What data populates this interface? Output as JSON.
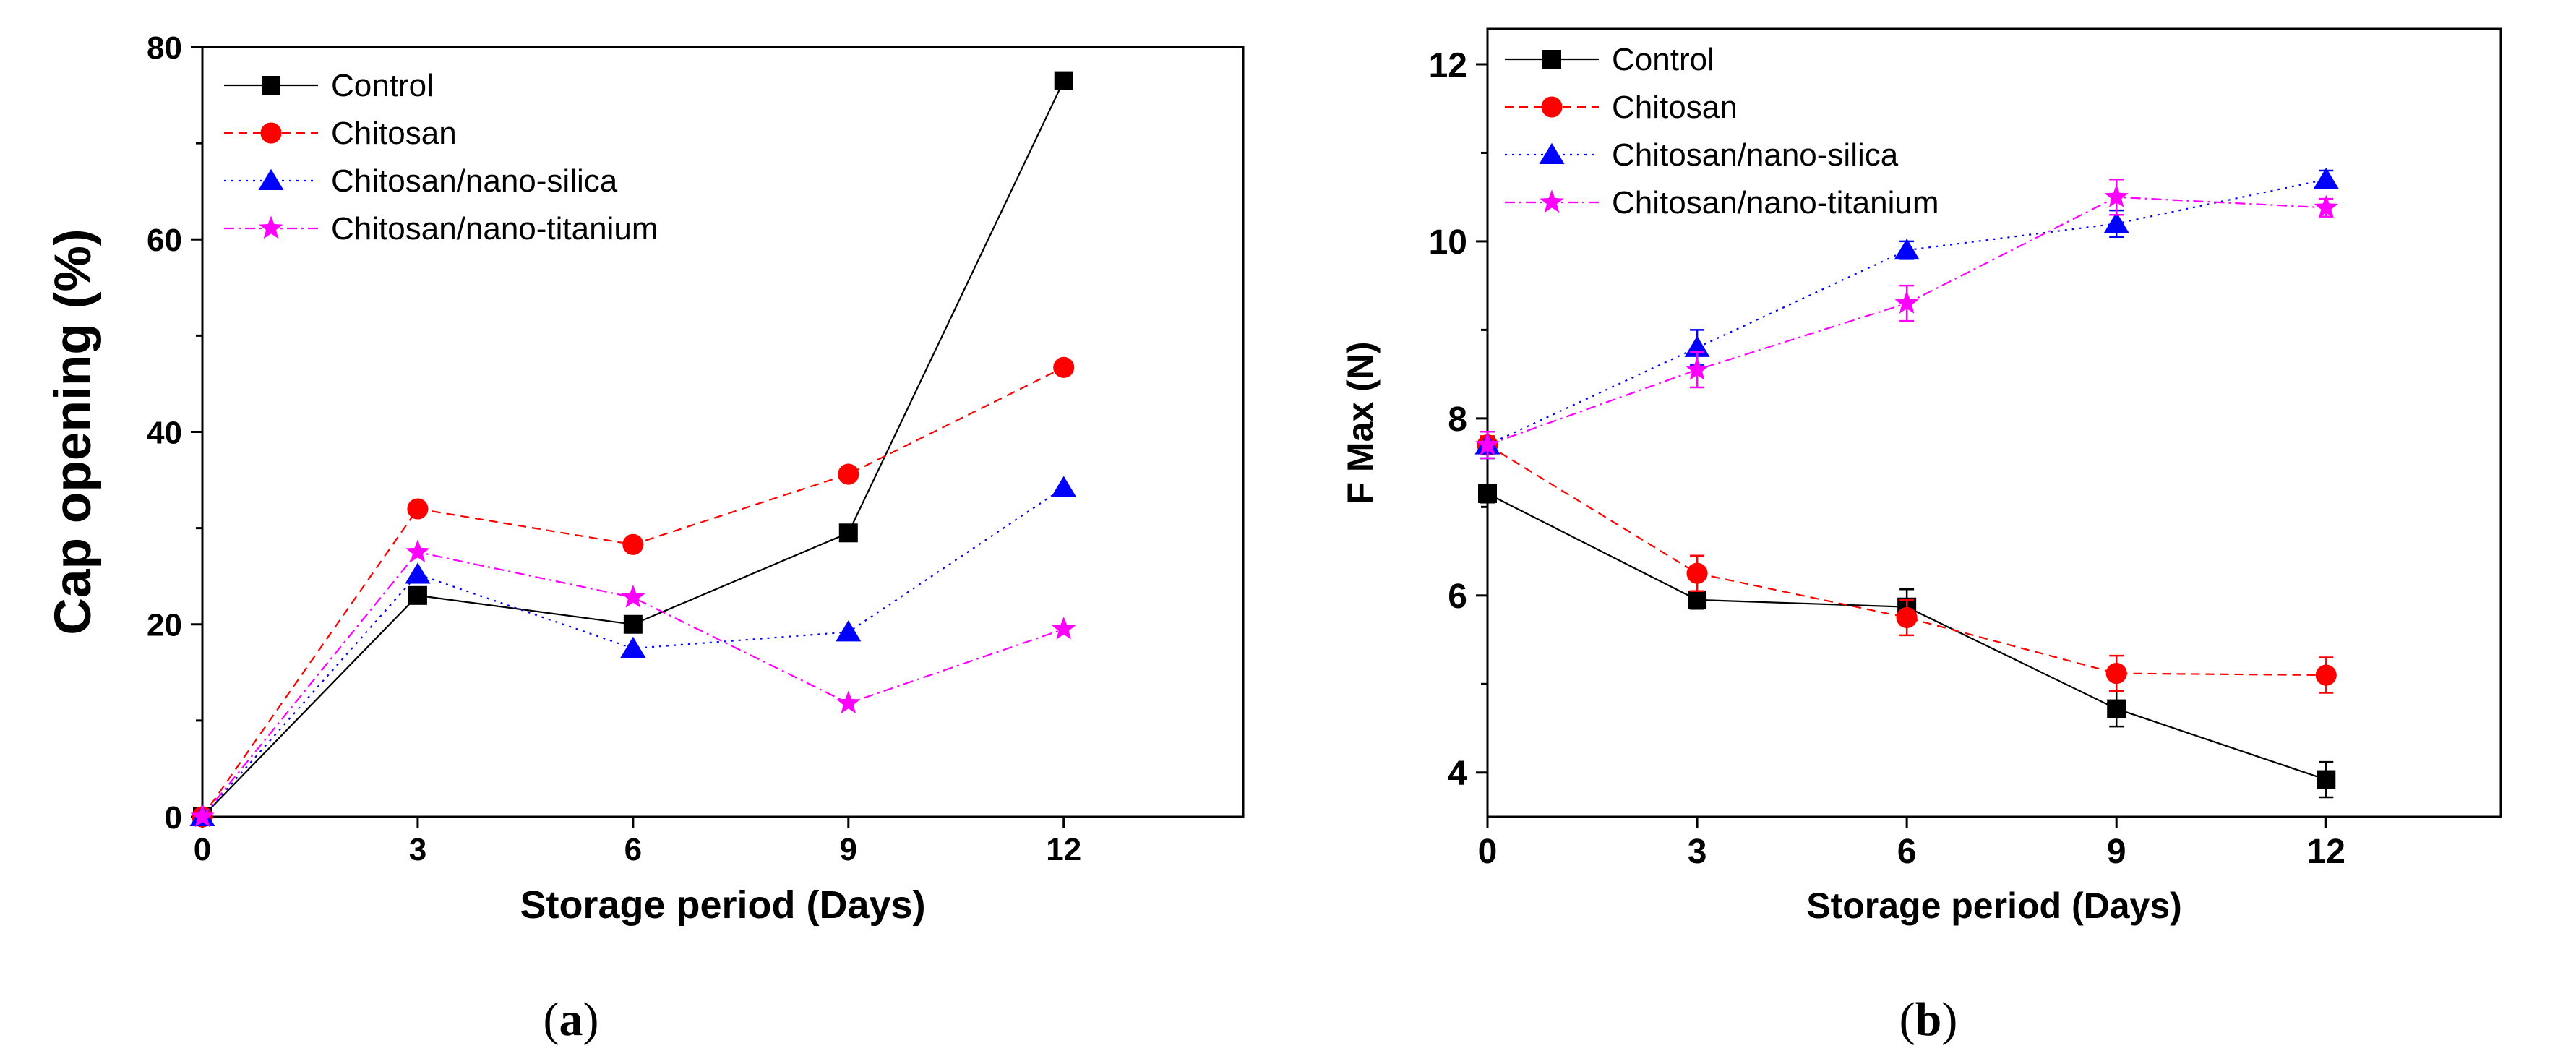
{
  "colors": {
    "Control": "#000000",
    "Chitosan": "#ff0000",
    "Chitosan/nano-silica": "#0000ff",
    "Chitosan/nano-titanium": "#ff00ff"
  },
  "chart_data": [
    {
      "type": "line",
      "panel_label": "a",
      "xlabel": "Storage period (Days)",
      "ylabel": "Cap opening (%)",
      "x": [
        0,
        3,
        6,
        9,
        12
      ],
      "xticks": [
        0,
        3,
        6,
        9,
        12
      ],
      "xlim": [
        0,
        14.5
      ],
      "ylim": [
        0,
        80
      ],
      "yticks": [
        0,
        20,
        40,
        60,
        80
      ],
      "legend": "top-left",
      "series": [
        {
          "name": "Control",
          "marker": "square",
          "dash": "solid",
          "values": [
            0,
            23,
            20,
            29.5,
            76.5
          ]
        },
        {
          "name": "Chitosan",
          "marker": "circle",
          "dash": "dashed",
          "values": [
            0,
            32,
            28.3,
            35.6,
            46.7
          ]
        },
        {
          "name": "Chitosan/nano-silica",
          "marker": "triangle",
          "dash": "dotted",
          "values": [
            0,
            25.2,
            17.5,
            19.2,
            34.2
          ]
        },
        {
          "name": "Chitosan/nano-titanium",
          "marker": "star",
          "dash": "dashdot",
          "values": [
            0,
            27.5,
            22.8,
            11.8,
            19.5
          ]
        }
      ]
    },
    {
      "type": "line",
      "panel_label": "b",
      "xlabel": "Storage period (Days)",
      "ylabel": "F Max (N)",
      "x": [
        0,
        3,
        6,
        9,
        12
      ],
      "xticks": [
        0,
        3,
        6,
        9,
        12
      ],
      "xlim": [
        0,
        14.5
      ],
      "ylim": [
        3.5,
        12.4
      ],
      "yticks": [
        4,
        6,
        8,
        10,
        12
      ],
      "legend": "top-left",
      "series": [
        {
          "name": "Control",
          "marker": "square",
          "dash": "solid",
          "values": [
            7.15,
            5.95,
            5.87,
            4.72,
            3.92
          ],
          "errors": [
            0.1,
            0.1,
            0.2,
            0.2,
            0.2
          ]
        },
        {
          "name": "Chitosan",
          "marker": "circle",
          "dash": "dashed",
          "values": [
            7.7,
            6.25,
            5.75,
            5.12,
            5.1
          ],
          "errors": [
            0.1,
            0.2,
            0.2,
            0.2,
            0.2
          ]
        },
        {
          "name": "Chitosan/nano-silica",
          "marker": "triangle",
          "dash": "dotted",
          "values": [
            7.7,
            8.8,
            9.9,
            10.2,
            10.7
          ],
          "errors": [
            0.15,
            0.2,
            0.1,
            0.15,
            0.1
          ]
        },
        {
          "name": "Chitosan/nano-titanium",
          "marker": "star",
          "dash": "dashdot",
          "values": [
            7.7,
            8.55,
            9.3,
            10.5,
            10.38
          ],
          "errors": [
            0.15,
            0.2,
            0.2,
            0.2,
            0.1
          ]
        }
      ]
    }
  ]
}
